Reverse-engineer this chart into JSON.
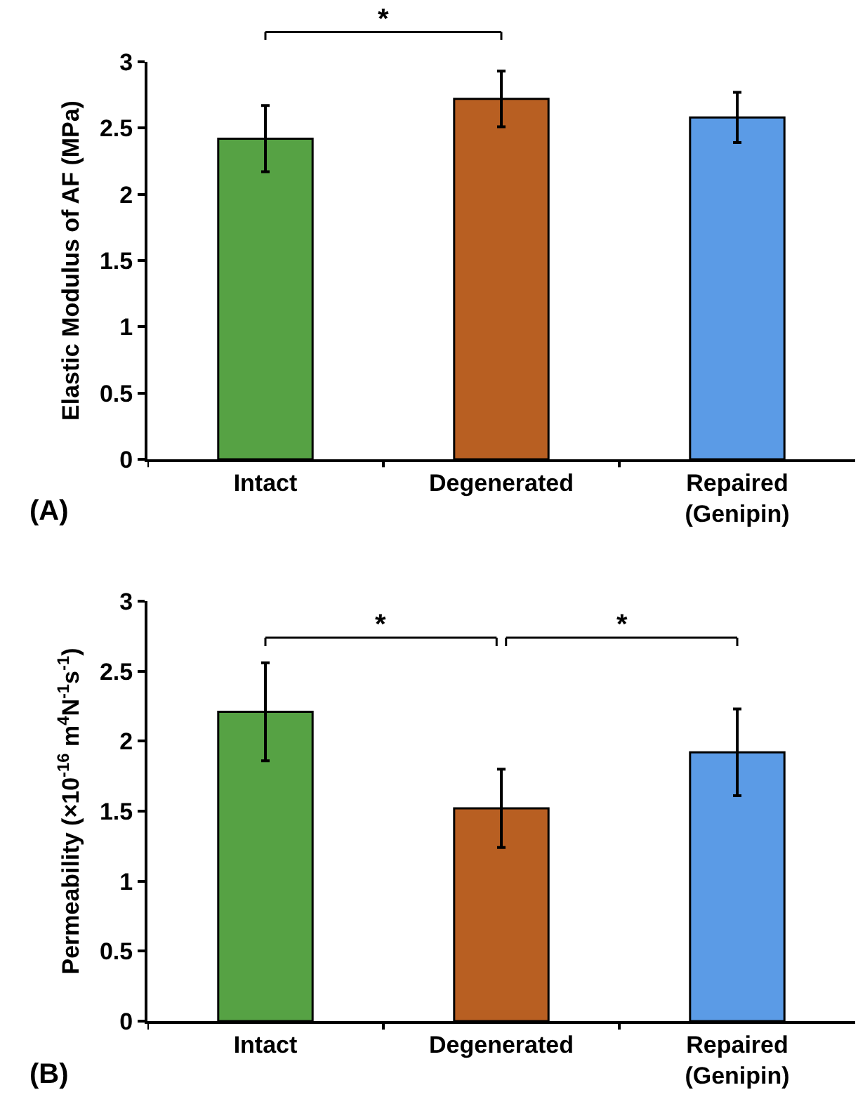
{
  "chart_data": [
    {
      "type": "bar",
      "ylabel": "Elastic Modulus of AF (MPa)",
      "categories": [
        "Intact",
        "Degenerated",
        "Repaired\n(Genipin)"
      ],
      "values": [
        2.42,
        2.72,
        2.58
      ],
      "colors": [
        "#56a244",
        "#b85f22",
        "#5b9be6"
      ],
      "errors": [
        [
          2.17,
          2.67
        ],
        [
          2.51,
          2.93
        ],
        [
          2.39,
          2.77
        ]
      ],
      "ylim": [
        0,
        3
      ],
      "yticks": [
        0,
        0.5,
        1,
        1.5,
        2,
        2.5,
        3
      ],
      "grid": false,
      "annotations": [
        "*",
        "(A)"
      ]
    },
    {
      "type": "bar",
      "ylabel": "Permeability (×10$^{-16}$ m$^{4}$N$^{-1}$s$^{-1}$)",
      "categories": [
        "Intact",
        "Degenerated",
        "Repaired\n(Genipin)"
      ],
      "values": [
        2.21,
        1.52,
        1.92
      ],
      "colors": [
        "#56a244",
        "#b85f22",
        "#5b9be6"
      ],
      "errors": [
        [
          1.86,
          2.56
        ],
        [
          1.24,
          1.8
        ],
        [
          1.61,
          2.23
        ]
      ],
      "ylim": [
        0,
        3
      ],
      "yticks": [
        0,
        0.5,
        1,
        1.5,
        2,
        2.5,
        3
      ],
      "grid": false,
      "annotations": [
        "*",
        "*",
        "(B)"
      ]
    }
  ]
}
